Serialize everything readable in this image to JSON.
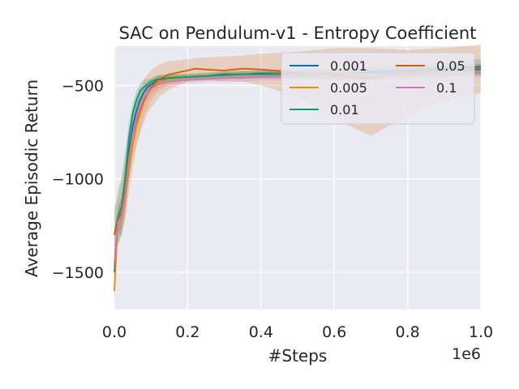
{
  "chart_data": {
    "type": "line",
    "title": "SAC on Pendulum-v1 - Entropy Coefficient",
    "xlabel": "#Steps",
    "ylabel": "Average Episodic Return",
    "x_scale_label": "1e6",
    "xlim": [
      0.0,
      1.0
    ],
    "ylim": [
      -1700,
      -290
    ],
    "x_ticks": [
      0.0,
      0.2,
      0.4,
      0.6,
      0.8,
      1.0
    ],
    "x_tick_labels": [
      "0.0",
      "0.2",
      "0.4",
      "0.6",
      "0.8",
      "1.0"
    ],
    "y_ticks": [
      -500,
      -1000,
      -1500
    ],
    "y_tick_labels": [
      "−500",
      "−1000",
      "−1500"
    ],
    "grid": true,
    "legend_position": "top-right",
    "legend_columns": 2,
    "series": [
      {
        "name": "0.001",
        "color": "#0173b2",
        "x": [
          0.0,
          0.01,
          0.02,
          0.03,
          0.04,
          0.05,
          0.06,
          0.07,
          0.08,
          0.09,
          0.1,
          0.12,
          0.15,
          0.2,
          0.25,
          0.3,
          0.35,
          0.4,
          0.5,
          0.6,
          0.7,
          0.8,
          0.9,
          1.0
        ],
        "y": [
          -1500,
          -1220,
          -1180,
          -1050,
          -850,
          -720,
          -640,
          -580,
          -540,
          -510,
          -495,
          -470,
          -460,
          -455,
          -450,
          -440,
          -440,
          -435,
          -435,
          -440,
          -430,
          -420,
          -410,
          -400
        ],
        "band_upper": [
          -1400,
          -1150,
          -1100,
          -950,
          -760,
          -640,
          -580,
          -530,
          -500,
          -480,
          -465,
          -445,
          -440,
          -440,
          -435,
          -425,
          -425,
          -420,
          -415,
          -410,
          -400,
          -385,
          -375,
          -360
        ],
        "band_lower": [
          -1600,
          -1290,
          -1260,
          -1150,
          -950,
          -800,
          -700,
          -630,
          -580,
          -545,
          -525,
          -495,
          -480,
          -475,
          -470,
          -460,
          -460,
          -455,
          -460,
          -470,
          -470,
          -460,
          -450,
          -440
        ]
      },
      {
        "name": "0.005",
        "color": "#de8f05",
        "x": [
          0.0,
          0.01,
          0.02,
          0.03,
          0.04,
          0.05,
          0.06,
          0.07,
          0.08,
          0.09,
          0.1,
          0.12,
          0.15,
          0.2,
          0.25,
          0.3,
          0.35,
          0.4,
          0.5,
          0.6,
          0.7,
          0.8,
          0.9,
          1.0
        ],
        "y": [
          -1600,
          -1230,
          -1200,
          -1100,
          -950,
          -820,
          -720,
          -650,
          -590,
          -550,
          -520,
          -485,
          -465,
          -455,
          -450,
          -445,
          -440,
          -440,
          -435,
          -430,
          -440,
          -430,
          -420,
          -410
        ],
        "band_upper": [
          -1450,
          -1150,
          -1100,
          -980,
          -820,
          -700,
          -620,
          -560,
          -520,
          -490,
          -470,
          -450,
          -440,
          -435,
          -430,
          -425,
          -420,
          -420,
          -415,
          -410,
          -415,
          -405,
          -395,
          -380
        ],
        "band_lower": [
          -1700,
          -1300,
          -1300,
          -1220,
          -1080,
          -950,
          -830,
          -750,
          -670,
          -620,
          -580,
          -530,
          -495,
          -480,
          -475,
          -470,
          -465,
          -465,
          -460,
          -455,
          -470,
          -460,
          -450,
          -440
        ]
      },
      {
        "name": "0.01",
        "color": "#029e73",
        "x": [
          0.0,
          0.01,
          0.02,
          0.03,
          0.04,
          0.05,
          0.06,
          0.07,
          0.08,
          0.09,
          0.1,
          0.12,
          0.15,
          0.2,
          0.25,
          0.3,
          0.35,
          0.4,
          0.5,
          0.6,
          0.7,
          0.8,
          0.9,
          1.0
        ],
        "y": [
          -1300,
          -1200,
          -1150,
          -980,
          -780,
          -650,
          -580,
          -530,
          -510,
          -495,
          -480,
          -465,
          -460,
          -455,
          -450,
          -445,
          -440,
          -440,
          -440,
          -445,
          -440,
          -430,
          -425,
          -415
        ],
        "band_upper": [
          -1200,
          -1050,
          -1000,
          -850,
          -700,
          -590,
          -530,
          -490,
          -470,
          -465,
          -460,
          -445,
          -440,
          -440,
          -435,
          -430,
          -425,
          -425,
          -420,
          -420,
          -415,
          -405,
          -395,
          -385
        ],
        "band_lower": [
          -1400,
          -1350,
          -1300,
          -1100,
          -870,
          -720,
          -640,
          -580,
          -550,
          -525,
          -505,
          -485,
          -480,
          -475,
          -470,
          -465,
          -460,
          -460,
          -465,
          -470,
          -470,
          -460,
          -455,
          -450
        ]
      },
      {
        "name": "0.05",
        "color": "#d55e00",
        "x": [
          0.0,
          0.01,
          0.02,
          0.03,
          0.04,
          0.05,
          0.06,
          0.07,
          0.08,
          0.09,
          0.1,
          0.12,
          0.15,
          0.2,
          0.22,
          0.25,
          0.3,
          0.35,
          0.4,
          0.5,
          0.6,
          0.7,
          0.8,
          0.9,
          1.0
        ],
        "y": [
          -1300,
          -1220,
          -1180,
          -1050,
          -880,
          -760,
          -690,
          -630,
          -580,
          -540,
          -510,
          -470,
          -440,
          -420,
          -410,
          -415,
          -420,
          -410,
          -415,
          -430,
          -450,
          -460,
          -430,
          -420,
          -410
        ],
        "band_upper": [
          -1150,
          -1100,
          -1000,
          -850,
          -720,
          -620,
          -560,
          -510,
          -470,
          -440,
          -420,
          -390,
          -370,
          -360,
          -355,
          -350,
          -345,
          -340,
          -330,
          -320,
          -300,
          -300,
          -310,
          -300,
          -280
        ],
        "band_lower": [
          -1450,
          -1350,
          -1300,
          -1200,
          -1020,
          -900,
          -820,
          -760,
          -700,
          -650,
          -620,
          -570,
          -520,
          -480,
          -470,
          -470,
          -480,
          -480,
          -500,
          -560,
          -680,
          -770,
          -660,
          -580,
          -540
        ]
      },
      {
        "name": "0.1",
        "color": "#cc78bc",
        "x": [
          0.0,
          0.01,
          0.02,
          0.03,
          0.04,
          0.05,
          0.06,
          0.07,
          0.08,
          0.09,
          0.1,
          0.12,
          0.15,
          0.2,
          0.25,
          0.3,
          0.35,
          0.4,
          0.5,
          0.6,
          0.7,
          0.8,
          0.9,
          1.0
        ],
        "y": [
          -1450,
          -1230,
          -1200,
          -1080,
          -900,
          -760,
          -680,
          -620,
          -570,
          -540,
          -520,
          -495,
          -480,
          -470,
          -465,
          -460,
          -460,
          -455,
          -450,
          -445,
          -440,
          -440,
          -435,
          -430
        ],
        "band_upper": [
          -1350,
          -1150,
          -1100,
          -980,
          -800,
          -680,
          -610,
          -560,
          -520,
          -500,
          -490,
          -470,
          -460,
          -450,
          -445,
          -440,
          -440,
          -435,
          -430,
          -425,
          -420,
          -420,
          -415,
          -405
        ],
        "band_lower": [
          -1550,
          -1310,
          -1300,
          -1180,
          -1000,
          -840,
          -750,
          -680,
          -620,
          -580,
          -550,
          -520,
          -500,
          -490,
          -485,
          -480,
          -480,
          -475,
          -470,
          -465,
          -460,
          -460,
          -455,
          -455
        ]
      }
    ]
  }
}
